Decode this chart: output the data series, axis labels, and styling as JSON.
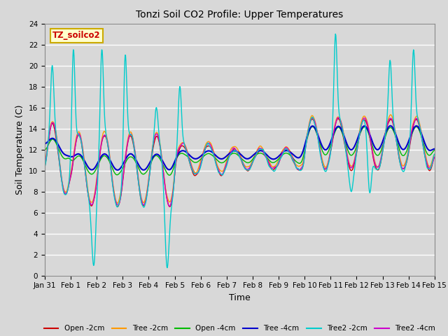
{
  "title": "Tonzi Soil CO2 Profile: Upper Temperatures",
  "xlabel": "Time",
  "ylabel": "Soil Temperature (C)",
  "ylim": [
    0,
    24
  ],
  "yticks": [
    0,
    2,
    4,
    6,
    8,
    10,
    12,
    14,
    16,
    18,
    20,
    22,
    24
  ],
  "background_color": "#d8d8d8",
  "plot_bg_color": "#d8d8d8",
  "grid_color": "white",
  "subtitle_box": "TZ_soilco2",
  "subtitle_box_bg": "#ffffcc",
  "subtitle_box_edge": "#ccaa00",
  "subtitle_text_color": "#cc0000",
  "series": {
    "Open -2cm": {
      "color": "#cc0000",
      "lw": 1.0
    },
    "Tree -2cm": {
      "color": "#ff9900",
      "lw": 1.0
    },
    "Open -4cm": {
      "color": "#00bb00",
      "lw": 1.0
    },
    "Tree -4cm": {
      "color": "#0000cc",
      "lw": 1.5
    },
    "Tree2 -2cm": {
      "color": "#00cccc",
      "lw": 1.0
    },
    "Tree2 -4cm": {
      "color": "#cc00cc",
      "lw": 1.0
    }
  },
  "xtick_labels": [
    "Jan 31",
    "Feb 1",
    "Feb 2",
    "Feb 3",
    "Feb 4",
    "Feb 5",
    "Feb 6",
    "Feb 7",
    "Feb 8",
    "Feb 9",
    "Feb 10",
    "Feb 11",
    "Feb 12",
    "Feb 13",
    "Feb 14",
    "Feb 15"
  ]
}
